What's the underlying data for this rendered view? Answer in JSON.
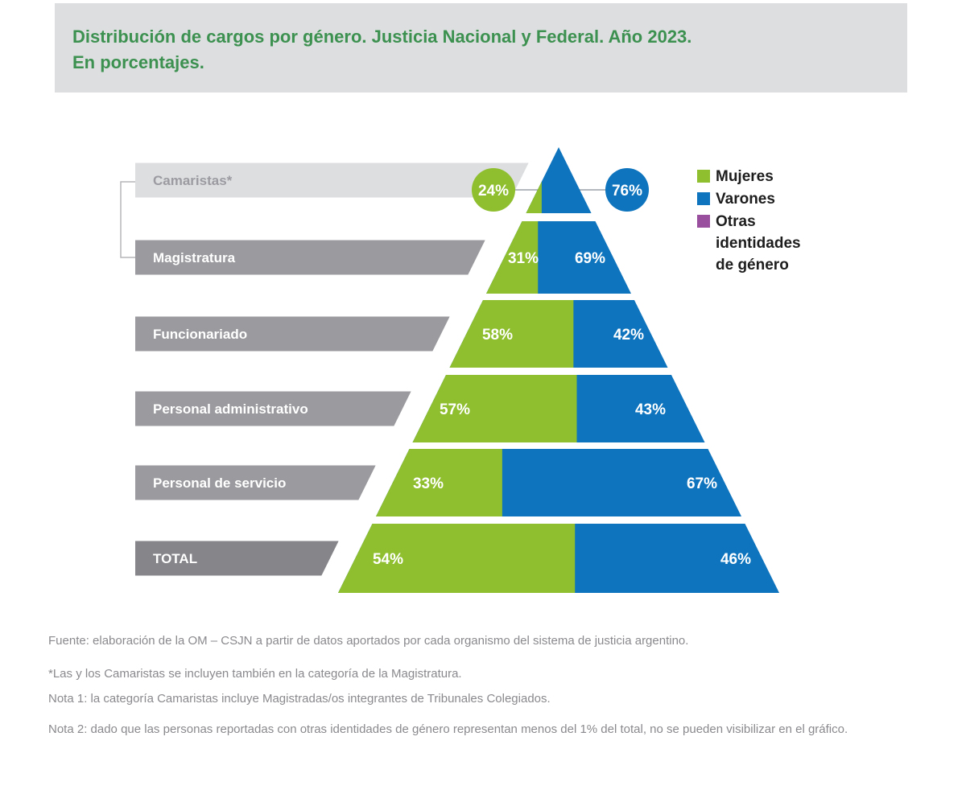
{
  "title": {
    "line1": "Distribución de cargos por género. Justicia Nacional y Federal. Año 2023.",
    "line2": "En porcentajes."
  },
  "legend": [
    {
      "label": "Mujeres",
      "color": "#8fbf2e"
    },
    {
      "label": "Varones",
      "color": "#0e74bd"
    },
    {
      "label": "Otras identidades de género",
      "color": "#9a4f9e"
    }
  ],
  "chart_data": {
    "type": "pyramid-stacked-percentage",
    "title": "Distribución de cargos por género. Justicia Nacional y Federal. Año 2023. En porcentajes.",
    "categories": [
      "Camaristas*",
      "Magistratura",
      "Funcionariado",
      "Personal administrativo",
      "Personal de servicio",
      "TOTAL"
    ],
    "series": [
      {
        "name": "Mujeres",
        "color": "#8fbf2e",
        "values": [
          24,
          31,
          58,
          57,
          33,
          54
        ]
      },
      {
        "name": "Varones",
        "color": "#0e74bd",
        "values": [
          76,
          69,
          42,
          43,
          67,
          46
        ]
      },
      {
        "name": "Otras identidades de género",
        "color": "#9a4f9e",
        "values": null
      }
    ],
    "value_suffix": "%",
    "top_level_callout": {
      "left_value": "24%",
      "right_value": "76%"
    },
    "legend_position": "right"
  },
  "colors": {
    "mujeres_green": "#8fbf2e",
    "varones_blue": "#0e74bd",
    "otras_purple": "#9a4f9e",
    "category_bar_gray": "#9b9b9f",
    "camaristas_bar_gray": "#dcdee0",
    "camaristas_text_gray": "#9b9ba1",
    "total_bar_gray": "#85858a",
    "bracket_gray": "#b6b6ba",
    "connector_gray": "#9aa0a8",
    "title_green": "#3d9150",
    "title_band_gray": "#dcdee0",
    "footer_gray": "#8a8a8e"
  },
  "footer": {
    "fuente": "Fuente: elaboración de la OM – CSJN a partir de datos aportados por cada organismo del sistema de justicia argentino.",
    "asterisco": "*Las y los Camaristas se incluyen también en la categoría de la Magistratura.",
    "nota1": "Nota 1: la categoría Camaristas incluye Magistradas/os integrantes de Tribunales Colegiados.",
    "nota2": "Nota 2: dado que las personas reportadas con otras identidades de género representan menos del 1% del total, no se pueden visibilizar en el gráfico."
  }
}
